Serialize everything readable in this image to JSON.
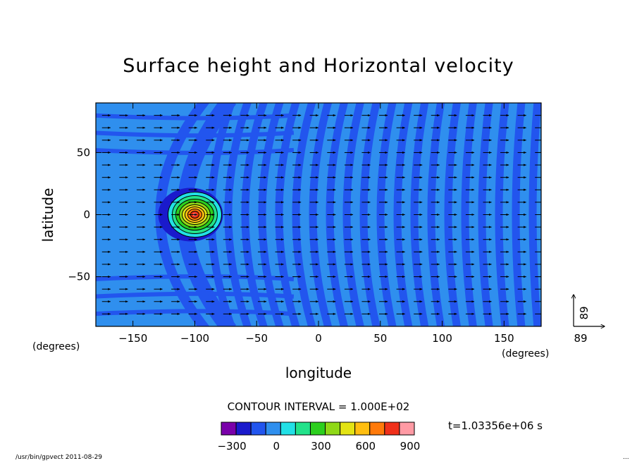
{
  "chart_data": {
    "type": "contour_vector",
    "title": "Surface height and Horizontal velocity",
    "xlabel": "longitude",
    "ylabel": "latitude",
    "x_units": "(degrees)",
    "y_units": "(degrees)",
    "xlim": [
      -180,
      180
    ],
    "ylim": [
      -90,
      90
    ],
    "x_ticks": [
      -150,
      -100,
      -50,
      0,
      50,
      100,
      150
    ],
    "y_ticks": [
      50,
      0,
      -50
    ],
    "x_tick_labels": [
      "−150",
      "−100",
      "−50",
      "0",
      "50",
      "100",
      "150"
    ],
    "y_tick_labels": [
      "50",
      "0",
      "−50"
    ],
    "contour_interval_text": "CONTOUR INTERVAL = 1.000E+02",
    "time_text": "t=1.03356e+06 s",
    "colorbar": {
      "colors": [
        "#7a00aa",
        "#1a1acc",
        "#2255ee",
        "#2f8fee",
        "#22e0e6",
        "#22e28a",
        "#2ccf1e",
        "#8fd817",
        "#e3e314",
        "#ffbe10",
        "#ff7a0a",
        "#f0301a",
        "#ff9aa4"
      ],
      "tick_labels": [
        "−300",
        "0",
        "300",
        "600",
        "900"
      ],
      "tick_values": [
        -300,
        0,
        300,
        600,
        900
      ],
      "min": -400,
      "max": 900
    },
    "vector_reference": {
      "x_label": "89",
      "y_label": "89"
    },
    "bump": {
      "center_lon": -100,
      "center_lat": 0,
      "peak": 900
    },
    "background_colors": [
      "#2f8fee",
      "#2255ee"
    ]
  },
  "footer": {
    "left": "/usr/bin/gpvect  2011-08-29",
    "right": "..."
  }
}
